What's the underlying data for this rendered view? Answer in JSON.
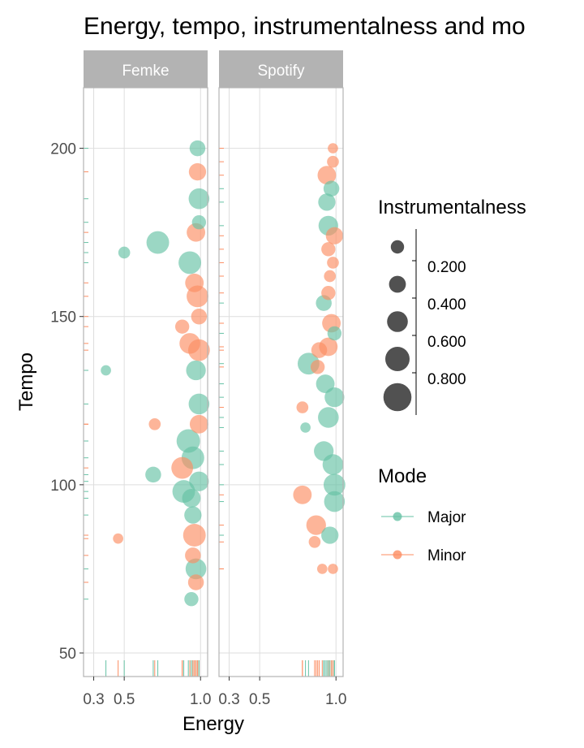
{
  "chart_data": {
    "type": "scatter",
    "title": "Energy, tempo, instrumentalness and mo",
    "xlabel": "Energy",
    "ylabel": "Tempo",
    "xlim": [
      0.26,
      1.02
    ],
    "ylim": [
      43,
      218
    ],
    "x_ticks": [
      0.3,
      0.5,
      1.0
    ],
    "x_tick_labels": [
      "0.3",
      "0.5",
      "1.0"
    ],
    "y_ticks": [
      50,
      100,
      150,
      200
    ],
    "y_tick_labels": [
      "50",
      "100",
      "150",
      "200"
    ],
    "facets": [
      "Femke",
      "Spotify"
    ],
    "grid": true,
    "rug": true,
    "size_legend": {
      "title": "Instrumentalness",
      "breaks": [
        0.2,
        0.4,
        0.6,
        0.8
      ],
      "labels": [
        "0.200",
        "0.400",
        "0.600",
        "0.800"
      ]
    },
    "color_legend": {
      "title": "Mode",
      "items": [
        {
          "label": "Major",
          "color": "#66c2a5"
        },
        {
          "label": "Minor",
          "color": "#fc8d62"
        }
      ]
    },
    "series": [
      {
        "facet": "Femke",
        "points": [
          {
            "x": 0.98,
            "y": 200,
            "i": 0.3,
            "mode": "Major"
          },
          {
            "x": 0.98,
            "y": 193,
            "i": 0.4,
            "mode": "Minor"
          },
          {
            "x": 0.99,
            "y": 185,
            "i": 0.7,
            "mode": "Major"
          },
          {
            "x": 0.99,
            "y": 178,
            "i": 0.2,
            "mode": "Major"
          },
          {
            "x": 0.97,
            "y": 175,
            "i": 0.5,
            "mode": "Minor"
          },
          {
            "x": 0.72,
            "y": 172,
            "i": 0.9,
            "mode": "Major"
          },
          {
            "x": 0.5,
            "y": 169,
            "i": 0.1,
            "mode": "Major"
          },
          {
            "x": 0.93,
            "y": 166,
            "i": 0.9,
            "mode": "Major"
          },
          {
            "x": 0.96,
            "y": 160,
            "i": 0.5,
            "mode": "Minor"
          },
          {
            "x": 0.98,
            "y": 156,
            "i": 0.8,
            "mode": "Minor"
          },
          {
            "x": 0.99,
            "y": 150,
            "i": 0.3,
            "mode": "Minor"
          },
          {
            "x": 0.88,
            "y": 147,
            "i": 0.2,
            "mode": "Minor"
          },
          {
            "x": 0.93,
            "y": 142,
            "i": 0.7,
            "mode": "Minor"
          },
          {
            "x": 0.99,
            "y": 140,
            "i": 0.8,
            "mode": "Minor"
          },
          {
            "x": 0.97,
            "y": 134,
            "i": 0.6,
            "mode": "Major"
          },
          {
            "x": 0.38,
            "y": 134,
            "i": 0.05,
            "mode": "Major"
          },
          {
            "x": 0.99,
            "y": 124,
            "i": 0.7,
            "mode": "Major"
          },
          {
            "x": 0.99,
            "y": 118,
            "i": 0.5,
            "mode": "Minor"
          },
          {
            "x": 0.7,
            "y": 118,
            "i": 0.1,
            "mode": "Minor"
          },
          {
            "x": 0.92,
            "y": 113,
            "i": 1.0,
            "mode": "Major"
          },
          {
            "x": 0.95,
            "y": 108,
            "i": 0.9,
            "mode": "Major"
          },
          {
            "x": 0.88,
            "y": 105,
            "i": 0.8,
            "mode": "Minor"
          },
          {
            "x": 0.69,
            "y": 103,
            "i": 0.3,
            "mode": "Major"
          },
          {
            "x": 0.99,
            "y": 101,
            "i": 0.6,
            "mode": "Major"
          },
          {
            "x": 0.89,
            "y": 98,
            "i": 0.9,
            "mode": "Major"
          },
          {
            "x": 0.94,
            "y": 96,
            "i": 0.5,
            "mode": "Major"
          },
          {
            "x": 0.95,
            "y": 91,
            "i": 0.4,
            "mode": "Major"
          },
          {
            "x": 0.96,
            "y": 85,
            "i": 0.9,
            "mode": "Minor"
          },
          {
            "x": 0.46,
            "y": 84,
            "i": 0.05,
            "mode": "Minor"
          },
          {
            "x": 0.95,
            "y": 79,
            "i": 0.3,
            "mode": "Minor"
          },
          {
            "x": 0.97,
            "y": 75,
            "i": 0.7,
            "mode": "Major"
          },
          {
            "x": 0.97,
            "y": 71,
            "i": 0.3,
            "mode": "Minor"
          },
          {
            "x": 0.94,
            "y": 66,
            "i": 0.2,
            "mode": "Major"
          }
        ]
      },
      {
        "facet": "Spotify",
        "points": [
          {
            "x": 0.98,
            "y": 200,
            "i": 0.05,
            "mode": "Minor"
          },
          {
            "x": 0.98,
            "y": 196,
            "i": 0.1,
            "mode": "Minor"
          },
          {
            "x": 0.94,
            "y": 192,
            "i": 0.5,
            "mode": "Minor"
          },
          {
            "x": 0.97,
            "y": 188,
            "i": 0.3,
            "mode": "Major"
          },
          {
            "x": 0.94,
            "y": 184,
            "i": 0.4,
            "mode": "Major"
          },
          {
            "x": 0.95,
            "y": 177,
            "i": 0.6,
            "mode": "Major"
          },
          {
            "x": 0.99,
            "y": 174,
            "i": 0.4,
            "mode": "Minor"
          },
          {
            "x": 0.95,
            "y": 170,
            "i": 0.2,
            "mode": "Minor"
          },
          {
            "x": 0.98,
            "y": 166,
            "i": 0.1,
            "mode": "Minor"
          },
          {
            "x": 0.96,
            "y": 162,
            "i": 0.1,
            "mode": "Minor"
          },
          {
            "x": 0.95,
            "y": 157,
            "i": 0.2,
            "mode": "Minor"
          },
          {
            "x": 0.92,
            "y": 154,
            "i": 0.3,
            "mode": "Major"
          },
          {
            "x": 0.97,
            "y": 148,
            "i": 0.5,
            "mode": "Minor"
          },
          {
            "x": 0.99,
            "y": 145,
            "i": 0.2,
            "mode": "Major"
          },
          {
            "x": 0.95,
            "y": 141,
            "i": 0.5,
            "mode": "Minor"
          },
          {
            "x": 0.89,
            "y": 140,
            "i": 0.3,
            "mode": "Minor"
          },
          {
            "x": 0.82,
            "y": 136,
            "i": 0.8,
            "mode": "Major"
          },
          {
            "x": 0.88,
            "y": 135,
            "i": 0.2,
            "mode": "Minor"
          },
          {
            "x": 0.93,
            "y": 130,
            "i": 0.5,
            "mode": "Major"
          },
          {
            "x": 0.99,
            "y": 126,
            "i": 0.6,
            "mode": "Major"
          },
          {
            "x": 0.78,
            "y": 123,
            "i": 0.1,
            "mode": "Minor"
          },
          {
            "x": 0.95,
            "y": 120,
            "i": 0.7,
            "mode": "Major"
          },
          {
            "x": 0.8,
            "y": 117,
            "i": 0.05,
            "mode": "Major"
          },
          {
            "x": 0.92,
            "y": 110,
            "i": 0.6,
            "mode": "Major"
          },
          {
            "x": 0.98,
            "y": 106,
            "i": 0.7,
            "mode": "Major"
          },
          {
            "x": 0.99,
            "y": 100,
            "i": 0.8,
            "mode": "Major"
          },
          {
            "x": 0.78,
            "y": 97,
            "i": 0.5,
            "mode": "Minor"
          },
          {
            "x": 0.99,
            "y": 95,
            "i": 0.7,
            "mode": "Major"
          },
          {
            "x": 0.87,
            "y": 88,
            "i": 0.6,
            "mode": "Minor"
          },
          {
            "x": 0.96,
            "y": 85,
            "i": 0.4,
            "mode": "Major"
          },
          {
            "x": 0.86,
            "y": 83,
            "i": 0.1,
            "mode": "Minor"
          },
          {
            "x": 0.91,
            "y": 75,
            "i": 0.05,
            "mode": "Minor"
          },
          {
            "x": 0.98,
            "y": 75,
            "i": 0.05,
            "mode": "Minor"
          }
        ]
      }
    ]
  }
}
